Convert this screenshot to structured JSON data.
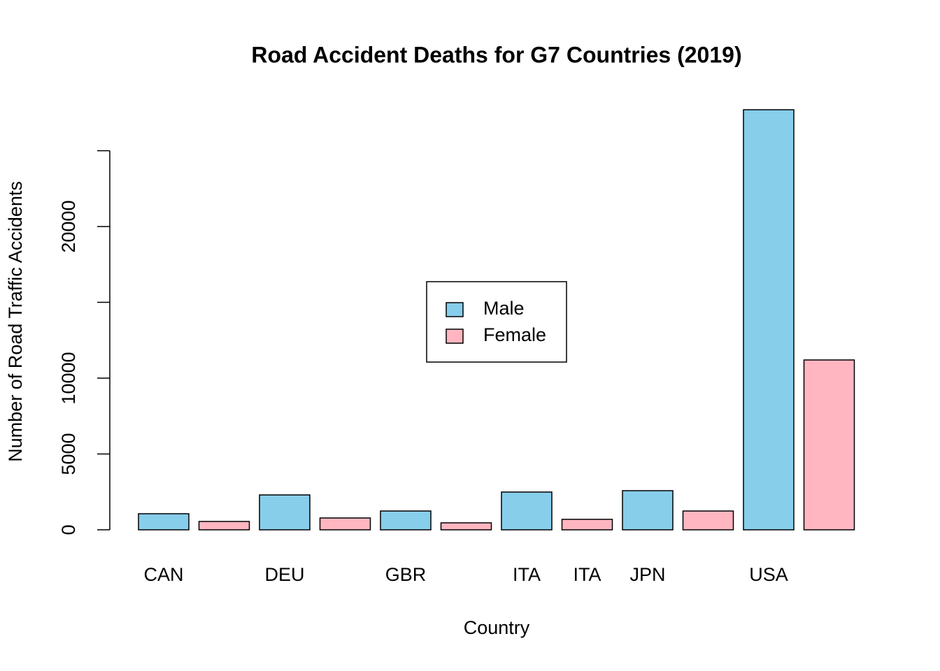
{
  "chart_data": {
    "type": "bar",
    "title": "Road Accident Deaths for G7 Countries (2019)",
    "x_label": "Country",
    "y_label": "Number of Road Traffic Accidents",
    "categories": [
      "CAN",
      null,
      "DEU",
      null,
      "GBR",
      null,
      "ITA",
      "ITA",
      "JPN",
      null,
      "USA",
      null
    ],
    "values": [
      1060,
      550,
      2300,
      780,
      1240,
      460,
      2490,
      690,
      2580,
      1240,
      27700,
      11200
    ],
    "colors": [
      "#87ceeb",
      "#ffb6c1",
      "#87ceeb",
      "#ffb6c1",
      "#87ceeb",
      "#ffb6c1",
      "#87ceeb",
      "#ffb6c1",
      "#87ceeb",
      "#ffb6c1",
      "#87ceeb",
      "#ffb6c1"
    ],
    "legend": [
      {
        "name": "Male",
        "color": "#87ceeb"
      },
      {
        "name": "Female",
        "color": "#ffb6c1"
      }
    ],
    "ylim": [
      0,
      27700
    ],
    "yticks": [
      0,
      5000,
      10000,
      {
        "value": 15000,
        "label": null
      },
      20000,
      {
        "value": 25000,
        "label": null
      }
    ]
  }
}
